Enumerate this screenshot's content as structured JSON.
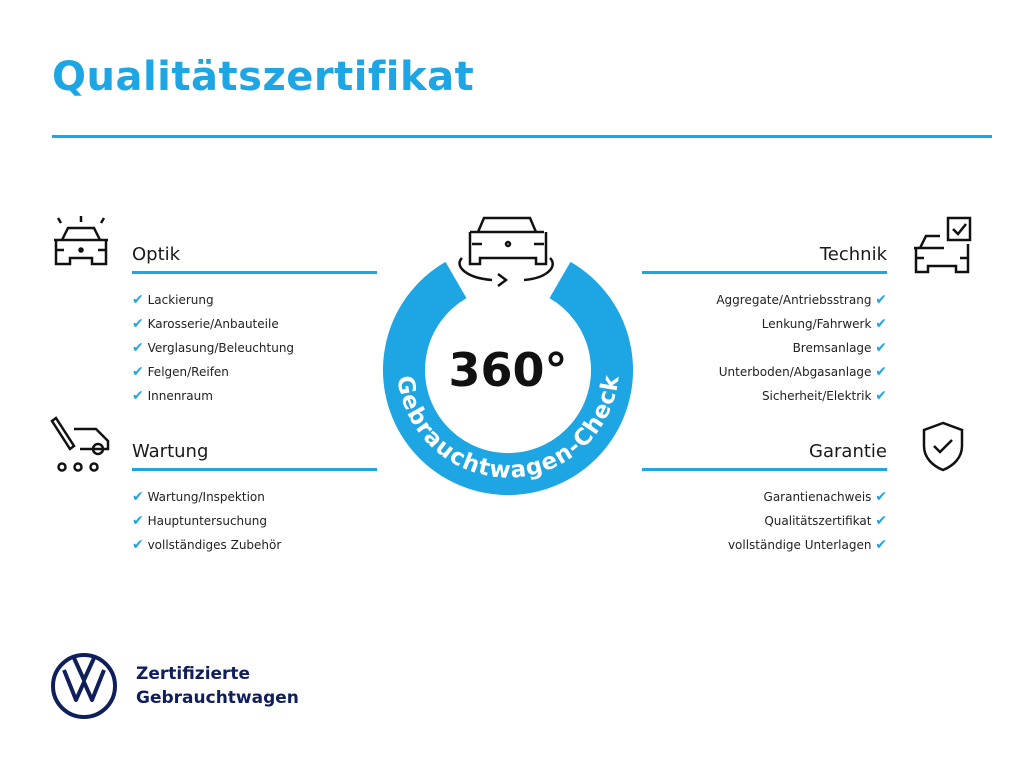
{
  "title": "Qualitätszertifikat",
  "badge": {
    "number": "360°",
    "ring_text": "Gebrauchtwagen-Check",
    "color": "#1ea5e3"
  },
  "sections": {
    "optik": {
      "title": "Optik",
      "items": [
        "Lackierung",
        "Karosserie/Anbauteile",
        "Verglasung/Beleuchtung",
        "Felgen/Reifen",
        "Innenraum"
      ]
    },
    "wartung": {
      "title": "Wartung",
      "items": [
        "Wartung/Inspektion",
        "Hauptuntersuchung",
        "vollständiges Zubehör"
      ]
    },
    "technik": {
      "title": "Technik",
      "items": [
        "Aggregate/Antriebsstrang",
        "Lenkung/Fahrwerk",
        "Bremsanlage",
        "Unterboden/Abgasanlage",
        "Sicherheit/Elektrik"
      ]
    },
    "garantie": {
      "title": "Garantie",
      "items": [
        "Garantienachweis",
        "Qualitätszertifikat",
        "vollständige Unterlagen"
      ]
    }
  },
  "check_mark": "✔",
  "footer": {
    "line1": "Zertifizierte",
    "line2": "Gebrauchtwagen"
  },
  "accent_color": "#1ea5e3"
}
